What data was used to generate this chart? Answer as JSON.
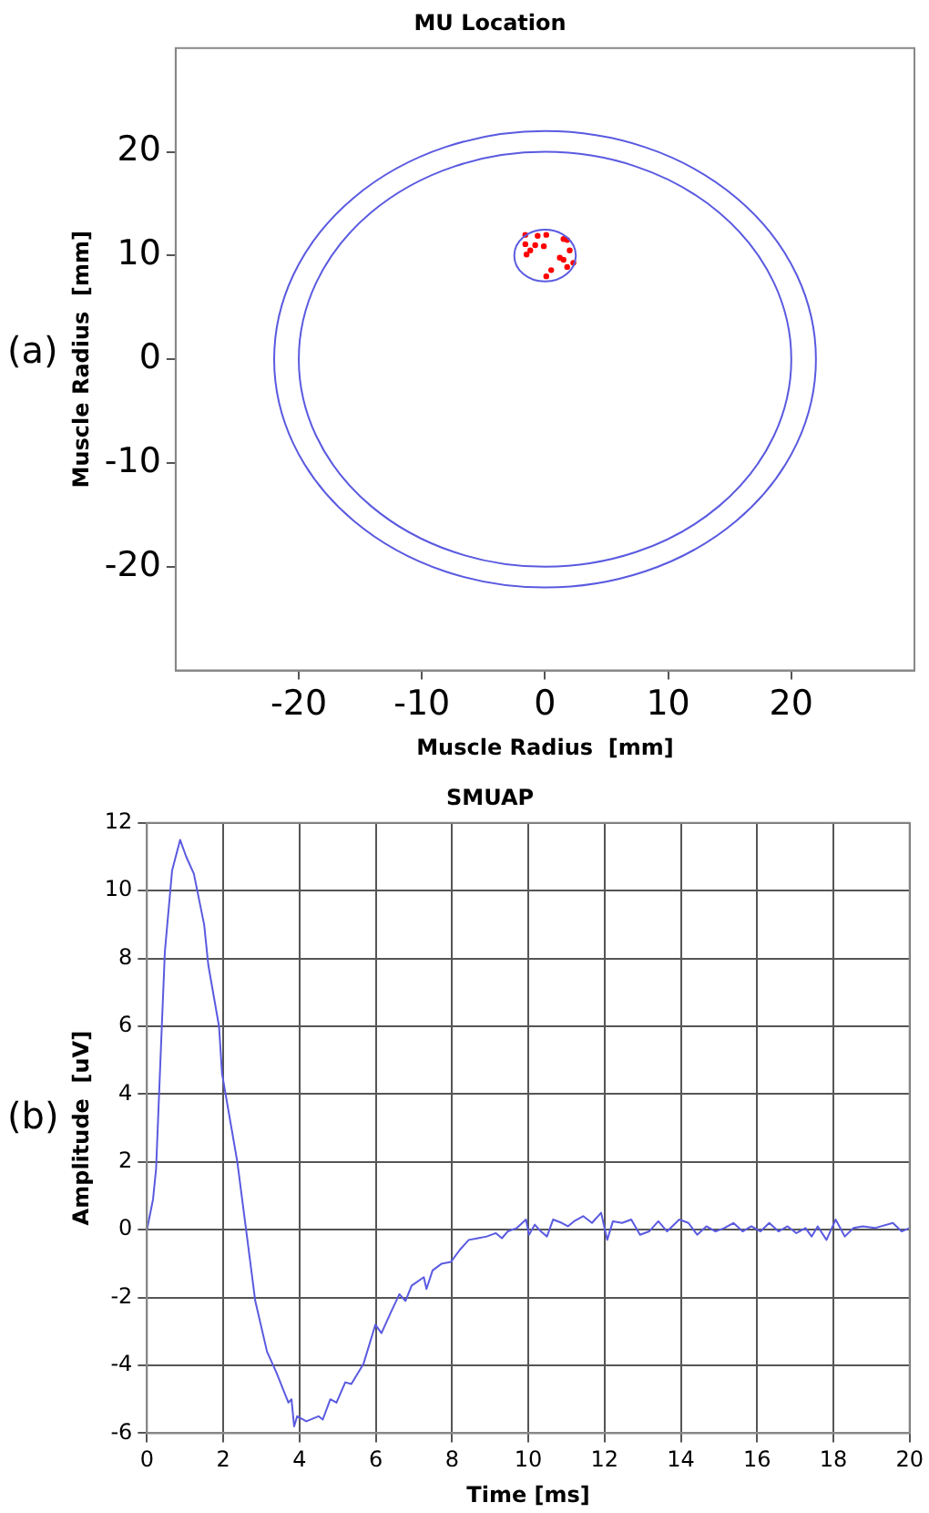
{
  "chart_data": [
    {
      "type": "scatter",
      "title": "MU Location",
      "xlabel": "Muscle Radius  [mm]",
      "ylabel": "Muscle Radius  [mm]",
      "annotations": [
        "(a)"
      ],
      "xlim": [
        -30,
        30
      ],
      "ylim": [
        -30,
        30
      ],
      "xticks": [
        -20,
        -10,
        0,
        10,
        20
      ],
      "yticks": [
        -20,
        -10,
        0,
        10,
        20
      ],
      "grid": false,
      "legend": false,
      "series": [
        {
          "type": "scatter",
          "marker": "circle",
          "color": "#ff0000",
          "x": [
            -1.6,
            -0.6,
            0.1,
            -1.6,
            -0.8,
            -0.1,
            -1.2,
            -1.5,
            1.5,
            1.8,
            2.0,
            1.2,
            1.5,
            2.3,
            1.8,
            0.5,
            0.1
          ],
          "values": [
            12.0,
            11.9,
            12.0,
            11.1,
            11.0,
            10.9,
            10.5,
            10.1,
            11.6,
            11.5,
            10.5,
            9.8,
            9.6,
            9.3,
            8.9,
            8.6,
            8.0
          ]
        }
      ]
    },
    {
      "type": "line",
      "title": "SMUAP",
      "xlabel": "Time [ms]",
      "ylabel": "Amplitude  [uV]",
      "annotations": [
        "(b)"
      ],
      "xlim": [
        0,
        20
      ],
      "ylim": [
        -6,
        12
      ],
      "xticks": [
        0,
        2,
        4,
        6,
        8,
        10,
        12,
        14,
        16,
        18,
        20
      ],
      "yticks": [
        -6,
        -4,
        -2,
        0,
        2,
        4,
        6,
        8,
        10,
        12
      ],
      "grid": true,
      "legend": false,
      "marker": "none",
      "line_style": "solid",
      "series": [
        {
          "color": "#5a5ae0",
          "x": [
            0,
            0.16,
            0.24,
            0.39,
            0.47,
            0.66,
            0.87,
            1.03,
            1.23,
            1.5,
            1.61,
            1.89,
            1.97,
            2.37,
            2.6,
            2.84,
            3.15,
            3.39,
            3.71,
            3.79,
            3.86,
            3.94,
            4.18,
            4.5,
            4.61,
            4.81,
            4.97,
            5.2,
            5.36,
            5.68,
            5.91,
            5.99,
            6.15,
            6.39,
            6.62,
            6.78,
            6.94,
            7.26,
            7.33,
            7.49,
            7.73,
            7.97,
            8.2,
            8.44,
            8.68,
            8.91,
            9.15,
            9.31,
            9.46,
            9.7,
            9.94,
            10.02,
            10.17,
            10.33,
            10.49,
            10.65,
            10.88,
            11.04,
            11.2,
            11.44,
            11.67,
            11.91,
            12.07,
            12.22,
            12.46,
            12.7,
            12.93,
            13.17,
            13.41,
            13.64,
            13.96,
            14.2,
            14.43,
            14.67,
            14.91,
            15.14,
            15.38,
            15.62,
            15.85,
            16.09,
            16.32,
            16.56,
            16.8,
            17.03,
            17.27,
            17.43,
            17.59,
            17.82,
            18.06,
            18.3,
            18.53,
            18.77,
            19.09,
            19.56,
            19.79,
            20
          ],
          "values": [
            0,
            0.9,
            1.8,
            6.0,
            8.2,
            10.6,
            11.5,
            11.0,
            10.5,
            9.0,
            7.8,
            6.0,
            4.6,
            2.0,
            0,
            -2.1,
            -3.6,
            -4.2,
            -5.1,
            -5.0,
            -5.8,
            -5.5,
            -5.65,
            -5.5,
            -5.6,
            -5.0,
            -5.1,
            -4.5,
            -4.55,
            -3.95,
            -3.1,
            -2.8,
            -3.05,
            -2.45,
            -1.9,
            -2.1,
            -1.65,
            -1.4,
            -1.75,
            -1.2,
            -1.0,
            -0.95,
            -0.6,
            -0.3,
            -0.25,
            -0.2,
            -0.1,
            -0.25,
            -0.05,
            0.05,
            0.3,
            -0.15,
            0.15,
            -0.05,
            -0.2,
            0.3,
            0.2,
            0.1,
            0.25,
            0.4,
            0.2,
            0.5,
            -0.3,
            0.25,
            0.2,
            0.3,
            -0.15,
            -0.05,
            0.25,
            -0.05,
            0.3,
            0.2,
            -0.15,
            0.1,
            -0.05,
            0.05,
            0.2,
            -0.05,
            0.1,
            -0.05,
            0.2,
            -0.05,
            0.1,
            -0.1,
            0.05,
            -0.2,
            0.1,
            -0.3,
            0.3,
            -0.2,
            0.05,
            0.1,
            0.05,
            0.2,
            -0.05,
            0.05
          ]
        }
      ]
    }
  ]
}
